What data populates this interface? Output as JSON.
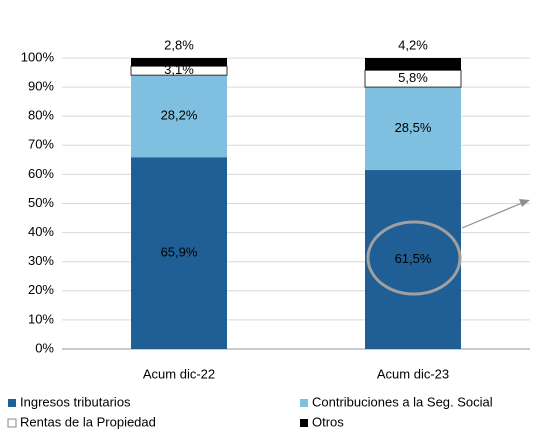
{
  "chart_data": {
    "type": "stacked_bar",
    "categories": [
      "Acum dic-22",
      "Acum dic-23"
    ],
    "series": [
      {
        "name": "Ingresos tributarios",
        "color": "#1f5f96",
        "values": [
          65.9,
          61.5
        ],
        "value_labels": [
          "65,9%",
          "61,5%"
        ]
      },
      {
        "name": "Contribuciones a la Seg. Social",
        "color": "#7fc0e0",
        "values": [
          28.2,
          28.5
        ],
        "value_labels": [
          "28,2%",
          "28,5%"
        ]
      },
      {
        "name": "Rentas de la Propiedad",
        "color": "#ffffff",
        "values": [
          3.1,
          5.8
        ],
        "value_labels": [
          "3,1%",
          "5,8%"
        ]
      },
      {
        "name": "Otros",
        "color": "#000000",
        "values": [
          2.8,
          4.2
        ],
        "value_labels": [
          "2,8%",
          "4,2%"
        ]
      }
    ],
    "ylim": [
      0,
      100
    ],
    "yticks": [
      {
        "value": 0,
        "label": "0%"
      },
      {
        "value": 10,
        "label": "10%"
      },
      {
        "value": 20,
        "label": "20%"
      },
      {
        "value": 30,
        "label": "30%"
      },
      {
        "value": 40,
        "label": "40%"
      },
      {
        "value": 50,
        "label": "50%"
      },
      {
        "value": 60,
        "label": "60%"
      },
      {
        "value": 70,
        "label": "70%"
      },
      {
        "value": 80,
        "label": "80%"
      },
      {
        "value": 90,
        "label": "90%"
      },
      {
        "value": 100,
        "label": "100%"
      }
    ],
    "grid": true
  }
}
